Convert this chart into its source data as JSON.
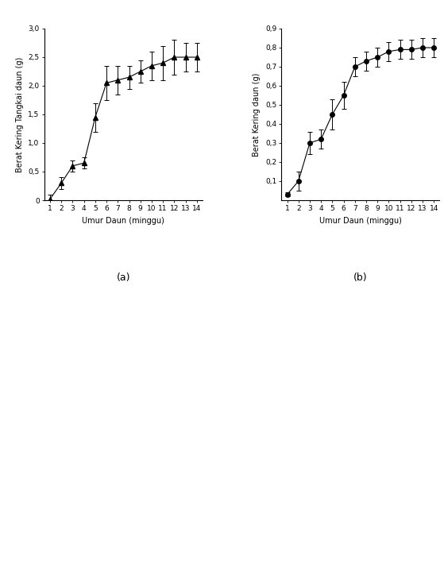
{
  "chart_a": {
    "x": [
      1,
      2,
      3,
      4,
      5,
      6,
      7,
      8,
      9,
      10,
      11,
      12,
      13,
      14
    ],
    "y": [
      0.02,
      0.3,
      0.6,
      0.65,
      1.45,
      2.05,
      2.1,
      2.15,
      2.25,
      2.35,
      2.4,
      2.5,
      2.5,
      2.5
    ],
    "yerr": [
      0.08,
      0.1,
      0.1,
      0.1,
      0.25,
      0.3,
      0.25,
      0.2,
      0.2,
      0.25,
      0.3,
      0.3,
      0.25,
      0.25
    ],
    "ylabel": "Berat Kering Tangkai daun (g)",
    "xlabel": "Umur Daun (minggu)",
    "ylim": [
      0,
      3
    ],
    "yticks": [
      0,
      0.5,
      1.0,
      1.5,
      2.0,
      2.5,
      3.0
    ],
    "ytick_labels": [
      "0",
      "0,5",
      "1,0",
      "1,5",
      "2,0",
      "2,5",
      "3,0"
    ],
    "label": "(a)"
  },
  "chart_b": {
    "x": [
      1,
      2,
      3,
      4,
      5,
      6,
      7,
      8,
      9,
      10,
      11,
      12,
      13,
      14
    ],
    "y": [
      0.03,
      0.1,
      0.3,
      0.32,
      0.45,
      0.55,
      0.7,
      0.73,
      0.75,
      0.78,
      0.79,
      0.79,
      0.8,
      0.8
    ],
    "yerr": [
      0.01,
      0.05,
      0.06,
      0.05,
      0.08,
      0.07,
      0.05,
      0.05,
      0.05,
      0.05,
      0.05,
      0.05,
      0.05,
      0.05
    ],
    "ylabel": "Berat Kering daun (g)",
    "xlabel": "Umur Daun (minggu)",
    "ylim": [
      0,
      0.9
    ],
    "yticks": [
      0.1,
      0.2,
      0.3,
      0.4,
      0.5,
      0.6,
      0.7,
      0.8,
      0.9
    ],
    "ytick_labels": [
      "0,1",
      "0,2",
      "0,3",
      "0,4",
      "0,5",
      "0,6",
      "0,7",
      "0,8",
      "0,9"
    ],
    "label": "(b)"
  },
  "background_color": "#ffffff",
  "line_color": "#000000",
  "marker_color": "#000000",
  "fontsize_label": 7,
  "fontsize_tick": 6.5,
  "fontsize_sublabel": 9
}
